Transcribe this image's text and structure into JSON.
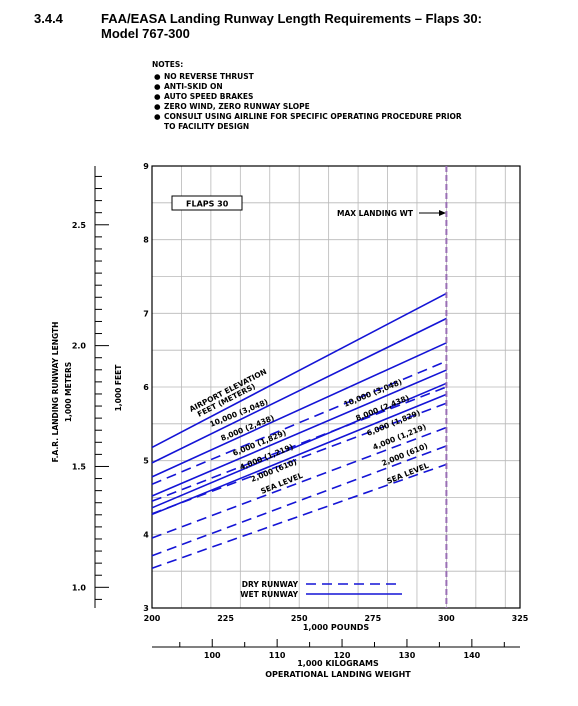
{
  "header": {
    "section": "3.4.4",
    "title_line1": "FAA/EASA Landing Runway Length Requirements – Flaps 30:",
    "title_line2": "Model 767-300"
  },
  "notes": {
    "heading": "NOTES:",
    "items": [
      "NO REVERSE THRUST",
      "ANTI-SKID ON",
      "AUTO SPEED BRAKES",
      "ZERO WIND, ZERO RUNWAY SLOPE",
      "CONSULT USING AIRLINE FOR SPECIFIC OPERATING PROCEDURE PRIOR"
    ],
    "item5_cont": "TO FACILITY DESIGN"
  },
  "chart_data": {
    "type": "line",
    "flaps_label": "FLAPS 30",
    "max_landing_label": "MAX LANDING WT",
    "max_landing_weight": 300,
    "x_pounds": {
      "ticks": [
        200,
        225,
        250,
        275,
        300,
        325
      ],
      "label": "1,000 POUNDS",
      "range": [
        200,
        325
      ]
    },
    "x_kilograms": {
      "ticks": [
        100,
        110,
        120,
        130,
        140
      ],
      "label1": "1,000 KILOGRAMS",
      "label2": "OPERATIONAL LANDING WEIGHT"
    },
    "y_feet": {
      "ticks": [
        3,
        4,
        5,
        6,
        7,
        8,
        9
      ],
      "label": "1,000 FEET",
      "range": [
        3,
        9
      ]
    },
    "y_meters": {
      "ticks": [
        1.0,
        1.5,
        2.0,
        2.5
      ],
      "tick_labels": [
        "1.0",
        "1.5",
        "2.0",
        "2.5"
      ],
      "label1": "F.A.R. LANDING RUNWAY LENGTH",
      "label2": "1,000 METERS"
    },
    "elevation_title1": "AIRPORT ELEVATION",
    "elevation_title2": "FEET   (METERS)",
    "legend": {
      "dry": "DRY RUNWAY",
      "wet": "WET RUNWAY"
    },
    "wet_series": [
      {
        "name": "10,000 (3,048)",
        "x": [
          200,
          300
        ],
        "y": [
          5.18,
          7.27
        ]
      },
      {
        "name": "8,000 (2,438)",
        "x": [
          200,
          300
        ],
        "y": [
          4.97,
          6.93
        ]
      },
      {
        "name": "6,000 (1,829)",
        "x": [
          200,
          300
        ],
        "y": [
          4.78,
          6.6
        ]
      },
      {
        "name": "4,000 (1,219)",
        "x": [
          200,
          300
        ],
        "y": [
          4.52,
          6.23
        ]
      },
      {
        "name": "2,000 (610)",
        "x": [
          200,
          300
        ],
        "y": [
          4.36,
          6.05
        ]
      },
      {
        "name": "SEA LEVEL",
        "x": [
          200,
          300
        ],
        "y": [
          4.27,
          5.9
        ]
      }
    ],
    "dry_series": [
      {
        "name": "10,000 (3,048)",
        "x": [
          200,
          300
        ],
        "y": [
          4.68,
          6.35
        ]
      },
      {
        "name": "8,000 (2,438)",
        "x": [
          200,
          300
        ],
        "y": [
          4.45,
          6.0
        ]
      },
      {
        "name": "6,000 (1,829)",
        "x": [
          200,
          300
        ],
        "y": [
          4.28,
          5.78
        ]
      },
      {
        "name": "4,000 (1,219)",
        "x": [
          200,
          300
        ],
        "y": [
          3.95,
          5.45
        ]
      },
      {
        "name": "2,000 (610)",
        "x": [
          200,
          300
        ],
        "y": [
          3.71,
          5.2
        ]
      },
      {
        "name": "SEA LEVEL",
        "x": [
          200,
          300
        ],
        "y": [
          3.54,
          4.95
        ]
      }
    ]
  }
}
